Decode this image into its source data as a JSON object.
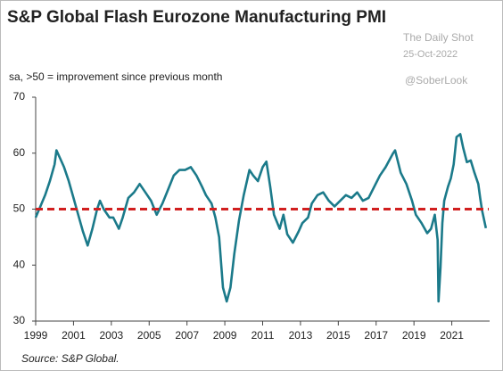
{
  "chart_data": {
    "type": "line",
    "title": "S&P Global Flash Eurozone Manufacturing PMI",
    "subtitle": "sa, >50 = improvement  since previous  month",
    "source": "Source:  S&P Global.",
    "watermarks": [
      "The Daily Shot",
      "25-Oct-2022",
      "@SoberLook"
    ],
    "xlim": [
      1999,
      2023
    ],
    "xticks": [
      1999,
      2001,
      2003,
      2005,
      2007,
      2009,
      2011,
      2013,
      2015,
      2017,
      2019,
      2021
    ],
    "ylim": [
      30,
      70
    ],
    "yticks": [
      30,
      40,
      50,
      60,
      70
    ],
    "grid": false,
    "reference_line": {
      "value": 50,
      "color": "#d11f1f"
    },
    "series": [
      {
        "color": "#1b7a8a",
        "x": [
          1999.0,
          1999.25,
          1999.5,
          1999.75,
          2000.0,
          2000.1,
          2000.3,
          2000.5,
          2000.75,
          2001.0,
          2001.25,
          2001.5,
          2001.75,
          2002.0,
          2002.25,
          2002.4,
          2002.6,
          2002.9,
          2003.1,
          2003.4,
          2003.6,
          2003.9,
          2004.2,
          2004.5,
          2004.8,
          2005.1,
          2005.4,
          2005.7,
          2006.0,
          2006.3,
          2006.6,
          2006.9,
          2007.2,
          2007.5,
          2007.8,
          2008.0,
          2008.3,
          2008.5,
          2008.7,
          2008.9,
          2009.1,
          2009.3,
          2009.5,
          2009.75,
          2010.0,
          2010.3,
          2010.5,
          2010.75,
          2011.0,
          2011.2,
          2011.4,
          2011.6,
          2011.9,
          2012.1,
          2012.3,
          2012.6,
          2012.9,
          2013.1,
          2013.4,
          2013.6,
          2013.9,
          2014.2,
          2014.5,
          2014.8,
          2015.1,
          2015.4,
          2015.7,
          2016.0,
          2016.3,
          2016.6,
          2016.9,
          2017.2,
          2017.5,
          2017.9,
          2018.0,
          2018.3,
          2018.6,
          2018.9,
          2019.1,
          2019.4,
          2019.7,
          2019.9,
          2020.1,
          2020.25,
          2020.3,
          2020.4,
          2020.5,
          2020.6,
          2020.8,
          2020.95,
          2021.1,
          2021.25,
          2021.45,
          2021.6,
          2021.8,
          2022.0,
          2022.2,
          2022.4,
          2022.5,
          2022.6,
          2022.8
        ],
        "values": [
          48.5,
          50.5,
          52.5,
          55,
          58,
          60.5,
          59,
          57.5,
          55,
          52,
          49,
          46,
          43.5,
          46.5,
          50,
          51.5,
          50,
          48.5,
          48.5,
          46.5,
          48.5,
          52,
          53,
          54.5,
          53,
          51.5,
          49,
          51,
          53.5,
          56,
          57,
          57,
          57.5,
          56,
          54,
          52.5,
          51,
          48.5,
          45,
          36,
          33.5,
          36,
          42,
          48,
          52.5,
          57,
          56,
          55,
          57.5,
          58.5,
          54,
          49,
          46.5,
          49,
          45.5,
          44,
          46,
          47.5,
          48.5,
          51,
          52.5,
          53,
          51.5,
          50.5,
          51.5,
          52.5,
          52,
          53,
          51.5,
          52,
          54,
          56,
          57.5,
          60,
          60.5,
          56.5,
          54.5,
          51.5,
          49,
          47.5,
          45.7,
          46.5,
          49,
          44.5,
          33.5,
          39.5,
          47.5,
          51.5,
          54,
          55.5,
          58,
          62.9,
          63.4,
          61,
          58.4,
          58.7,
          56.5,
          54.5,
          52,
          49.8,
          46.6
        ]
      }
    ]
  }
}
